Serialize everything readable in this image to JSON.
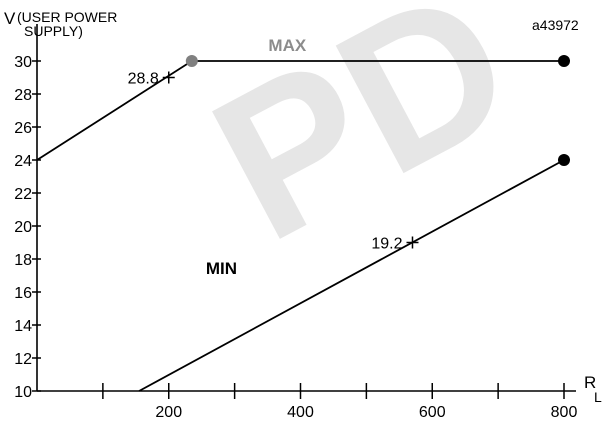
{
  "figure_id": "a43972",
  "watermark": "PD",
  "chart_data": {
    "type": "line",
    "ylabel_main": "V",
    "ylabel_sub_1": "(USER POWER",
    "ylabel_sub_2": "SUPPLY)",
    "xlabel_main": "R",
    "xlabel_sub": "L",
    "xlim": [
      0,
      870
    ],
    "ylim": [
      10,
      31
    ],
    "x_ticks_minor": [
      100,
      200,
      300,
      400,
      500,
      600,
      700,
      800
    ],
    "x_tick_labels": [
      200,
      400,
      600,
      800
    ],
    "y_ticks": [
      10,
      12,
      14,
      16,
      18,
      20,
      22,
      24,
      26,
      28,
      30
    ],
    "series": [
      {
        "name": "MAX",
        "color": "#000000",
        "label_color": "#8c8c8c",
        "label_at": [
          380,
          30.6
        ],
        "points": [
          [
            0,
            24
          ],
          [
            235,
            30
          ],
          [
            800,
            30
          ]
        ],
        "markers": [
          {
            "x": 235,
            "y": 30,
            "color": "#808080"
          },
          {
            "x": 800,
            "y": 30,
            "color": "#000000"
          }
        ],
        "annotation": {
          "text": "28.8",
          "x": 200,
          "y": 29
        }
      },
      {
        "name": "MIN",
        "color": "#000000",
        "label_color": "#000000",
        "label_at": [
          280,
          17.1
        ],
        "points": [
          [
            155,
            10
          ],
          [
            800,
            24
          ]
        ],
        "markers": [
          {
            "x": 800,
            "y": 24,
            "color": "#000000"
          }
        ],
        "annotation": {
          "text": "19.2",
          "x": 570,
          "y": 19
        }
      }
    ]
  }
}
